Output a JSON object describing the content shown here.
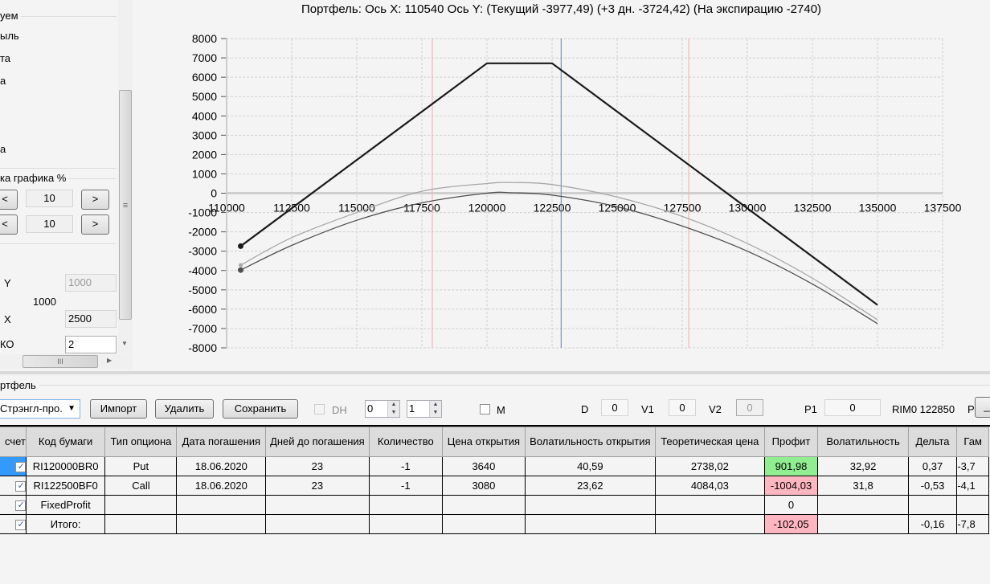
{
  "left_panel": {
    "group1_label": "уем",
    "items": [
      "ыль",
      "та",
      "а",
      "а"
    ],
    "group2_label": "ка графика %",
    "row1": {
      "dec": "<",
      "value": "10",
      "inc": ">"
    },
    "row2": {
      "dec": "<",
      "value": "10",
      "inc": ">"
    },
    "y_label": "Y",
    "y_value": "1000",
    "y_static": "1000",
    "x_label": "X",
    "x_value": "2500",
    "ko_label": "КО",
    "ko_value": "2",
    "scroll_grip": "≡",
    "hscroll_grip": "III"
  },
  "chart_data": {
    "type": "line",
    "title": "Портфель: Ось X: 110540 Ось Y:  (Текущий -3977,49)  (+3 дн. -3724,42)  (На экспирацию -2740)",
    "xlim": [
      110000,
      137500
    ],
    "ylim": [
      -8000,
      8000
    ],
    "x_ticks": [
      "110000",
      "112500",
      "115000",
      "117500",
      "120000",
      "122500",
      "125000",
      "127500",
      "130000",
      "132500",
      "135000",
      "137500"
    ],
    "y_ticks": [
      "8000",
      "7000",
      "6000",
      "5000",
      "4000",
      "3000",
      "2000",
      "1000",
      "0",
      "-1000",
      "-2000",
      "-3000",
      "-4000",
      "-5000",
      "-6000",
      "-7000",
      "-8000"
    ],
    "grid": true,
    "series": [
      {
        "key": "expiry",
        "color": "#1a1a1a",
        "x": [
          110540,
          120000,
          122500,
          135000
        ],
        "y": [
          -2740,
          6720,
          6720,
          -5780
        ]
      },
      {
        "key": "plus3",
        "color": "#a8a8a8",
        "x": [
          110540,
          112500,
          115000,
          117500,
          120000,
          121000,
          122500,
          125000,
          127500,
          130000,
          132500,
          135000
        ],
        "y": [
          -3724,
          -2300,
          -1000,
          100,
          500,
          550,
          450,
          -200,
          -1200,
          -2600,
          -4400,
          -6550
        ]
      },
      {
        "key": "current",
        "color": "#505050",
        "x": [
          110540,
          112500,
          115000,
          117500,
          120000,
          121000,
          122500,
          125000,
          127500,
          130000,
          132500,
          135000
        ],
        "y": [
          -3977,
          -2700,
          -1400,
          -500,
          0,
          20,
          -100,
          -700,
          -1700,
          -3000,
          -4700,
          -6750
        ]
      }
    ],
    "vlines": [
      {
        "x": 117900,
        "color": "#ffb0b8"
      },
      {
        "x": 122850,
        "color": "#8090b0"
      },
      {
        "x": 127750,
        "color": "#ffb0b8"
      }
    ]
  },
  "portfolio": {
    "group_label": "ртфель",
    "strategy": "Стрэнгл-про.",
    "import": "Импорт",
    "delete": "Удалить",
    "save": "Сохранить",
    "dh": "DH",
    "spin1": "0",
    "spin2": "1",
    "m": "M",
    "d_label": "D",
    "d_value": "0",
    "v1_label": "V1",
    "v1_value": "0",
    "v2_label": "V2",
    "v2_value": "0",
    "p1_label": "P1",
    "p1_value": "0",
    "rim": "RIM0 122850",
    "p_label": "P",
    "p_btn": "_"
  },
  "table": {
    "headers": [
      "счет",
      "Код бумаги",
      "Тип опциона",
      "Дата погашения",
      "Дней до погашения",
      "Количество",
      "Цена открытия",
      "Волатильность открытия",
      "Теоретическая цена",
      "Профит",
      "Волатильность",
      "Дельта",
      "Гам"
    ],
    "rows": [
      {
        "check": "✓",
        "cells": [
          "RI120000BR0",
          "Put",
          "18.06.2020",
          "23",
          "-1",
          "3640",
          "40,59",
          "2738,02",
          "901,98",
          "32,92",
          "0,37",
          "-3,7"
        ],
        "profit_status": "green"
      },
      {
        "check": "✓",
        "cells": [
          "RI122500BF0",
          "Call",
          "18.06.2020",
          "23",
          "-1",
          "3080",
          "23,62",
          "4084,03",
          "-1004,03",
          "31,8",
          "-0,53",
          "-4,1"
        ],
        "profit_status": "red"
      },
      {
        "check": "✓",
        "cells": [
          "FixedProfit",
          "",
          "",
          "",
          "",
          "",
          "",
          "",
          "0",
          "",
          "",
          ""
        ],
        "profit_status": ""
      },
      {
        "check": "✓",
        "cells": [
          "Итого:",
          "",
          "",
          "",
          "",
          "",
          "",
          "",
          "-102,05",
          "",
          "-0,16",
          "-7,8"
        ],
        "profit_status": "red"
      }
    ]
  }
}
